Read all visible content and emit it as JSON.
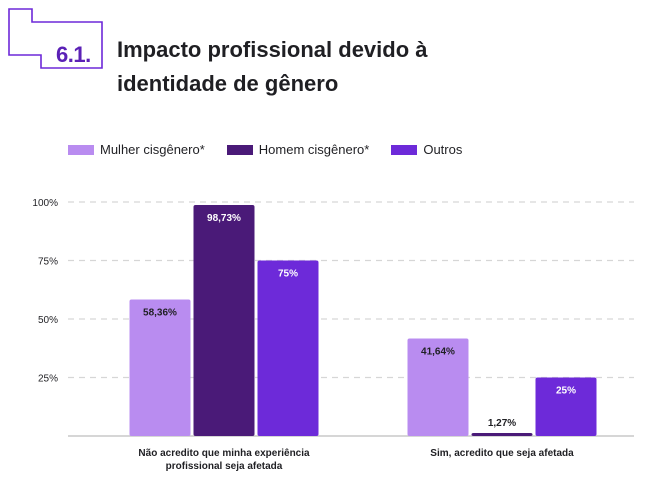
{
  "badge": {
    "number": "6.1."
  },
  "title": "Impacto profissional devido à identidade de gênero",
  "colors": {
    "accent": "#6d28d9",
    "mulher": "#b98cf0",
    "homem": "#4a1a78",
    "outros": "#6d2ad9",
    "grid": "#d6d6d6",
    "axis": "#c8c8c8",
    "text": "#1f1f23"
  },
  "chart_data": {
    "type": "bar",
    "categories": [
      "Não acredito que minha experiência profissional seja afetada",
      "Sim, acredito que seja afetada"
    ],
    "category_lines": [
      [
        "Não acredito que minha experiência",
        "profissional seja afetada"
      ],
      [
        "Sim, acredito que seja afetada"
      ]
    ],
    "series": [
      {
        "name": "Mulher cisgênero*",
        "values": [
          58.36,
          41.64
        ],
        "labels": [
          "58,36%",
          "41,64%"
        ],
        "color": "#b98cf0",
        "label_color": "#1f1f23"
      },
      {
        "name": "Homem cisgênero*",
        "values": [
          98.73,
          1.27
        ],
        "labels": [
          "98,73%",
          "1,27%"
        ],
        "color": "#4a1a78",
        "label_color": "#ffffff"
      },
      {
        "name": "Outros",
        "values": [
          75,
          25
        ],
        "labels": [
          "75%",
          "25%"
        ],
        "color": "#6d2ad9",
        "label_color": "#ffffff"
      }
    ],
    "yticks": [
      25,
      50,
      75,
      100
    ],
    "ytick_labels": [
      "25%",
      "50%",
      "75%",
      "100%"
    ],
    "ylim": [
      0,
      100
    ],
    "grid": true,
    "legend": "top-left"
  }
}
